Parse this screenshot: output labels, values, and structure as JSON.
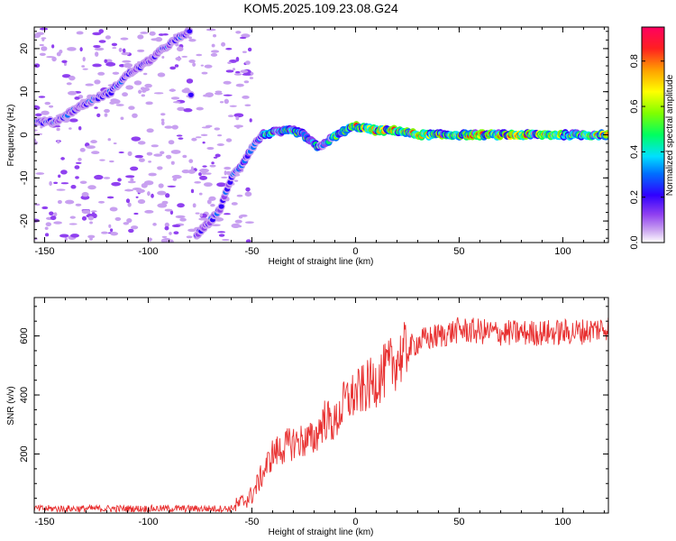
{
  "title": "KOM5.2025.109.23.08.G24",
  "colors": {
    "snr_line": "#e83030",
    "axis": "#000000",
    "colormap": [
      "#ffffff",
      "#c8a0f0",
      "#9040f0",
      "#3000ff",
      "#0070ff",
      "#00e0ff",
      "#00ff60",
      "#80ff00",
      "#ffff00",
      "#ffa000",
      "#ff2020",
      "#ff0060"
    ]
  },
  "chart_data": [
    {
      "type": "heatmap",
      "xlabel": "Height of straight line (km)",
      "ylabel": "Frequency (Hz)",
      "xlim": [
        -155,
        122
      ],
      "ylim": [
        -25,
        25
      ],
      "xticks": [
        -150,
        -100,
        -50,
        0,
        50,
        100
      ],
      "yticks": [
        -20,
        -10,
        0,
        10,
        20
      ],
      "colorbar": {
        "label": "Normalized spectral amplitude",
        "range": [
          0,
          0.95
        ],
        "ticks": [
          "0.0",
          "0.2",
          "0.4",
          "0.6",
          "0.8"
        ]
      },
      "ridge": [
        {
          "x": -155,
          "y": 3
        },
        {
          "x": -145,
          "y": 3
        },
        {
          "x": -135,
          "y": 6
        },
        {
          "x": -127,
          "y": 8
        },
        {
          "x": -118,
          "y": 10
        },
        {
          "x": -110,
          "y": 14
        },
        {
          "x": -100,
          "y": 17
        },
        {
          "x": -90,
          "y": 21
        },
        {
          "x": -80,
          "y": 24
        },
        {
          "x": -78,
          "y": -24
        },
        {
          "x": -70,
          "y": -20
        },
        {
          "x": -65,
          "y": -17
        },
        {
          "x": -60,
          "y": -10
        },
        {
          "x": -55,
          "y": -7
        },
        {
          "x": -50,
          "y": -3
        },
        {
          "x": -45,
          "y": 0
        },
        {
          "x": -40,
          "y": 0.5
        },
        {
          "x": -30,
          "y": 1
        },
        {
          "x": -25,
          "y": 0
        },
        {
          "x": -18,
          "y": -3
        },
        {
          "x": -12,
          "y": -1
        },
        {
          "x": -5,
          "y": 1
        },
        {
          "x": 0,
          "y": 2
        },
        {
          "x": 10,
          "y": 1
        },
        {
          "x": 20,
          "y": 1
        },
        {
          "x": 30,
          "y": 0
        },
        {
          "x": 40,
          "y": 0
        },
        {
          "x": 50,
          "y": 0
        },
        {
          "x": 60,
          "y": 0
        },
        {
          "x": 70,
          "y": 0
        },
        {
          "x": 80,
          "y": 0
        },
        {
          "x": 90,
          "y": 0
        },
        {
          "x": 100,
          "y": 0
        },
        {
          "x": 110,
          "y": 0
        },
        {
          "x": 122,
          "y": 0
        }
      ]
    },
    {
      "type": "line",
      "xlabel": "Height of straight line (km)",
      "ylabel": "SNR (v/v)",
      "xlim": [
        -155,
        122
      ],
      "ylim": [
        0,
        730
      ],
      "xticks": [
        -150,
        -100,
        -50,
        0,
        50,
        100
      ],
      "yticks": [
        200,
        400,
        600
      ],
      "trend": [
        {
          "x": -155,
          "y": 15
        },
        {
          "x": -120,
          "y": 15
        },
        {
          "x": -80,
          "y": 15
        },
        {
          "x": -60,
          "y": 15
        },
        {
          "x": -55,
          "y": 35
        },
        {
          "x": -50,
          "y": 60
        },
        {
          "x": -45,
          "y": 130
        },
        {
          "x": -40,
          "y": 200
        },
        {
          "x": -30,
          "y": 240
        },
        {
          "x": -20,
          "y": 250
        },
        {
          "x": -15,
          "y": 320
        },
        {
          "x": -10,
          "y": 300
        },
        {
          "x": -5,
          "y": 380
        },
        {
          "x": 0,
          "y": 400
        },
        {
          "x": 10,
          "y": 450
        },
        {
          "x": 20,
          "y": 520
        },
        {
          "x": 30,
          "y": 580
        },
        {
          "x": 40,
          "y": 600
        },
        {
          "x": 50,
          "y": 620
        },
        {
          "x": 70,
          "y": 610
        },
        {
          "x": 90,
          "y": 610
        },
        {
          "x": 110,
          "y": 615
        },
        {
          "x": 122,
          "y": 630
        }
      ]
    }
  ]
}
